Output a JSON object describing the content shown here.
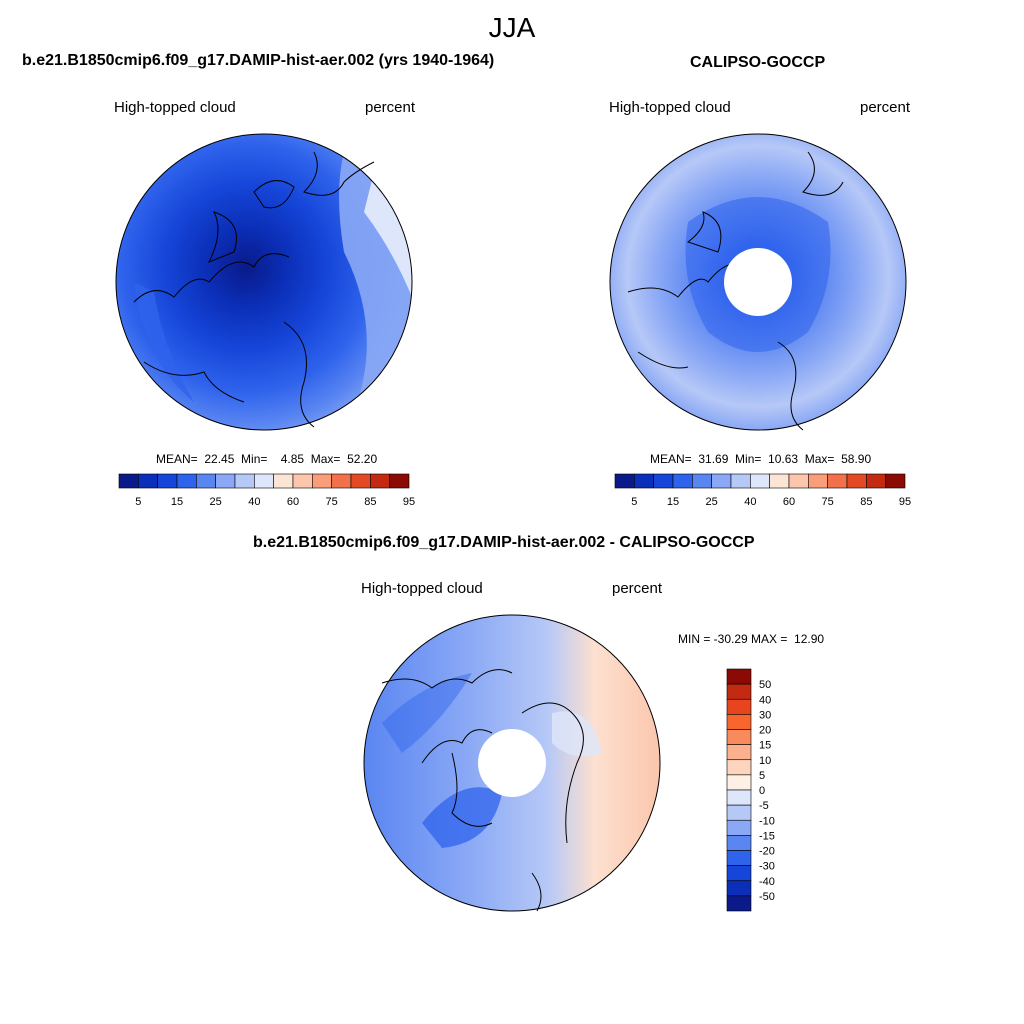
{
  "page_title": "JJA",
  "panels": [
    {
      "title": "b.e21.B1850cmip6.f09_g17.DAMIP-hist-aer.002 (yrs 1940-1964)",
      "variable": "High-topped cloud",
      "units": "percent",
      "stats": "MEAN=  22.45  Min=    4.85  Max=  52.20"
    },
    {
      "title": "CALIPSO-GOCCP",
      "variable": "High-topped cloud",
      "units": "percent",
      "stats": "MEAN=  31.69  Min=  10.63  Max=  58.90"
    },
    {
      "title": "b.e21.B1850cmip6.f09_g17.DAMIP-hist-aer.002 - CALIPSO-GOCCP",
      "variable": "High-topped cloud",
      "units": "percent",
      "stats": "MIN = -30.29 MAX =  12.90"
    }
  ],
  "colorbar_abs": {
    "tick_labels": [
      "5",
      "15",
      "25",
      "40",
      "60",
      "75",
      "85",
      "95"
    ],
    "colors": [
      "#0a1a8a",
      "#0b2fb8",
      "#1646d9",
      "#2f63ec",
      "#5a86f2",
      "#8aa8f5",
      "#b6c8f7",
      "#dde6fa",
      "#fde5d6",
      "#fbc6ac",
      "#f89e7a",
      "#f2704a",
      "#e24a26",
      "#c22a12",
      "#8c0a04"
    ]
  },
  "colorbar_diff": {
    "tick_labels": [
      "50",
      "40",
      "30",
      "20",
      "15",
      "10",
      "5",
      "0",
      "-5",
      "-10",
      "-15",
      "-20",
      "-30",
      "-40",
      "-50"
    ],
    "colors": [
      "#8c0a04",
      "#c22a12",
      "#e8451f",
      "#f8662e",
      "#f98a5c",
      "#fbb08e",
      "#fdd4bd",
      "#fff0e6",
      "#dde6fa",
      "#b6c8f7",
      "#8aa8f5",
      "#5a86f2",
      "#2f63ec",
      "#1646d9",
      "#0b2fb8",
      "#0a1a8a"
    ]
  }
}
